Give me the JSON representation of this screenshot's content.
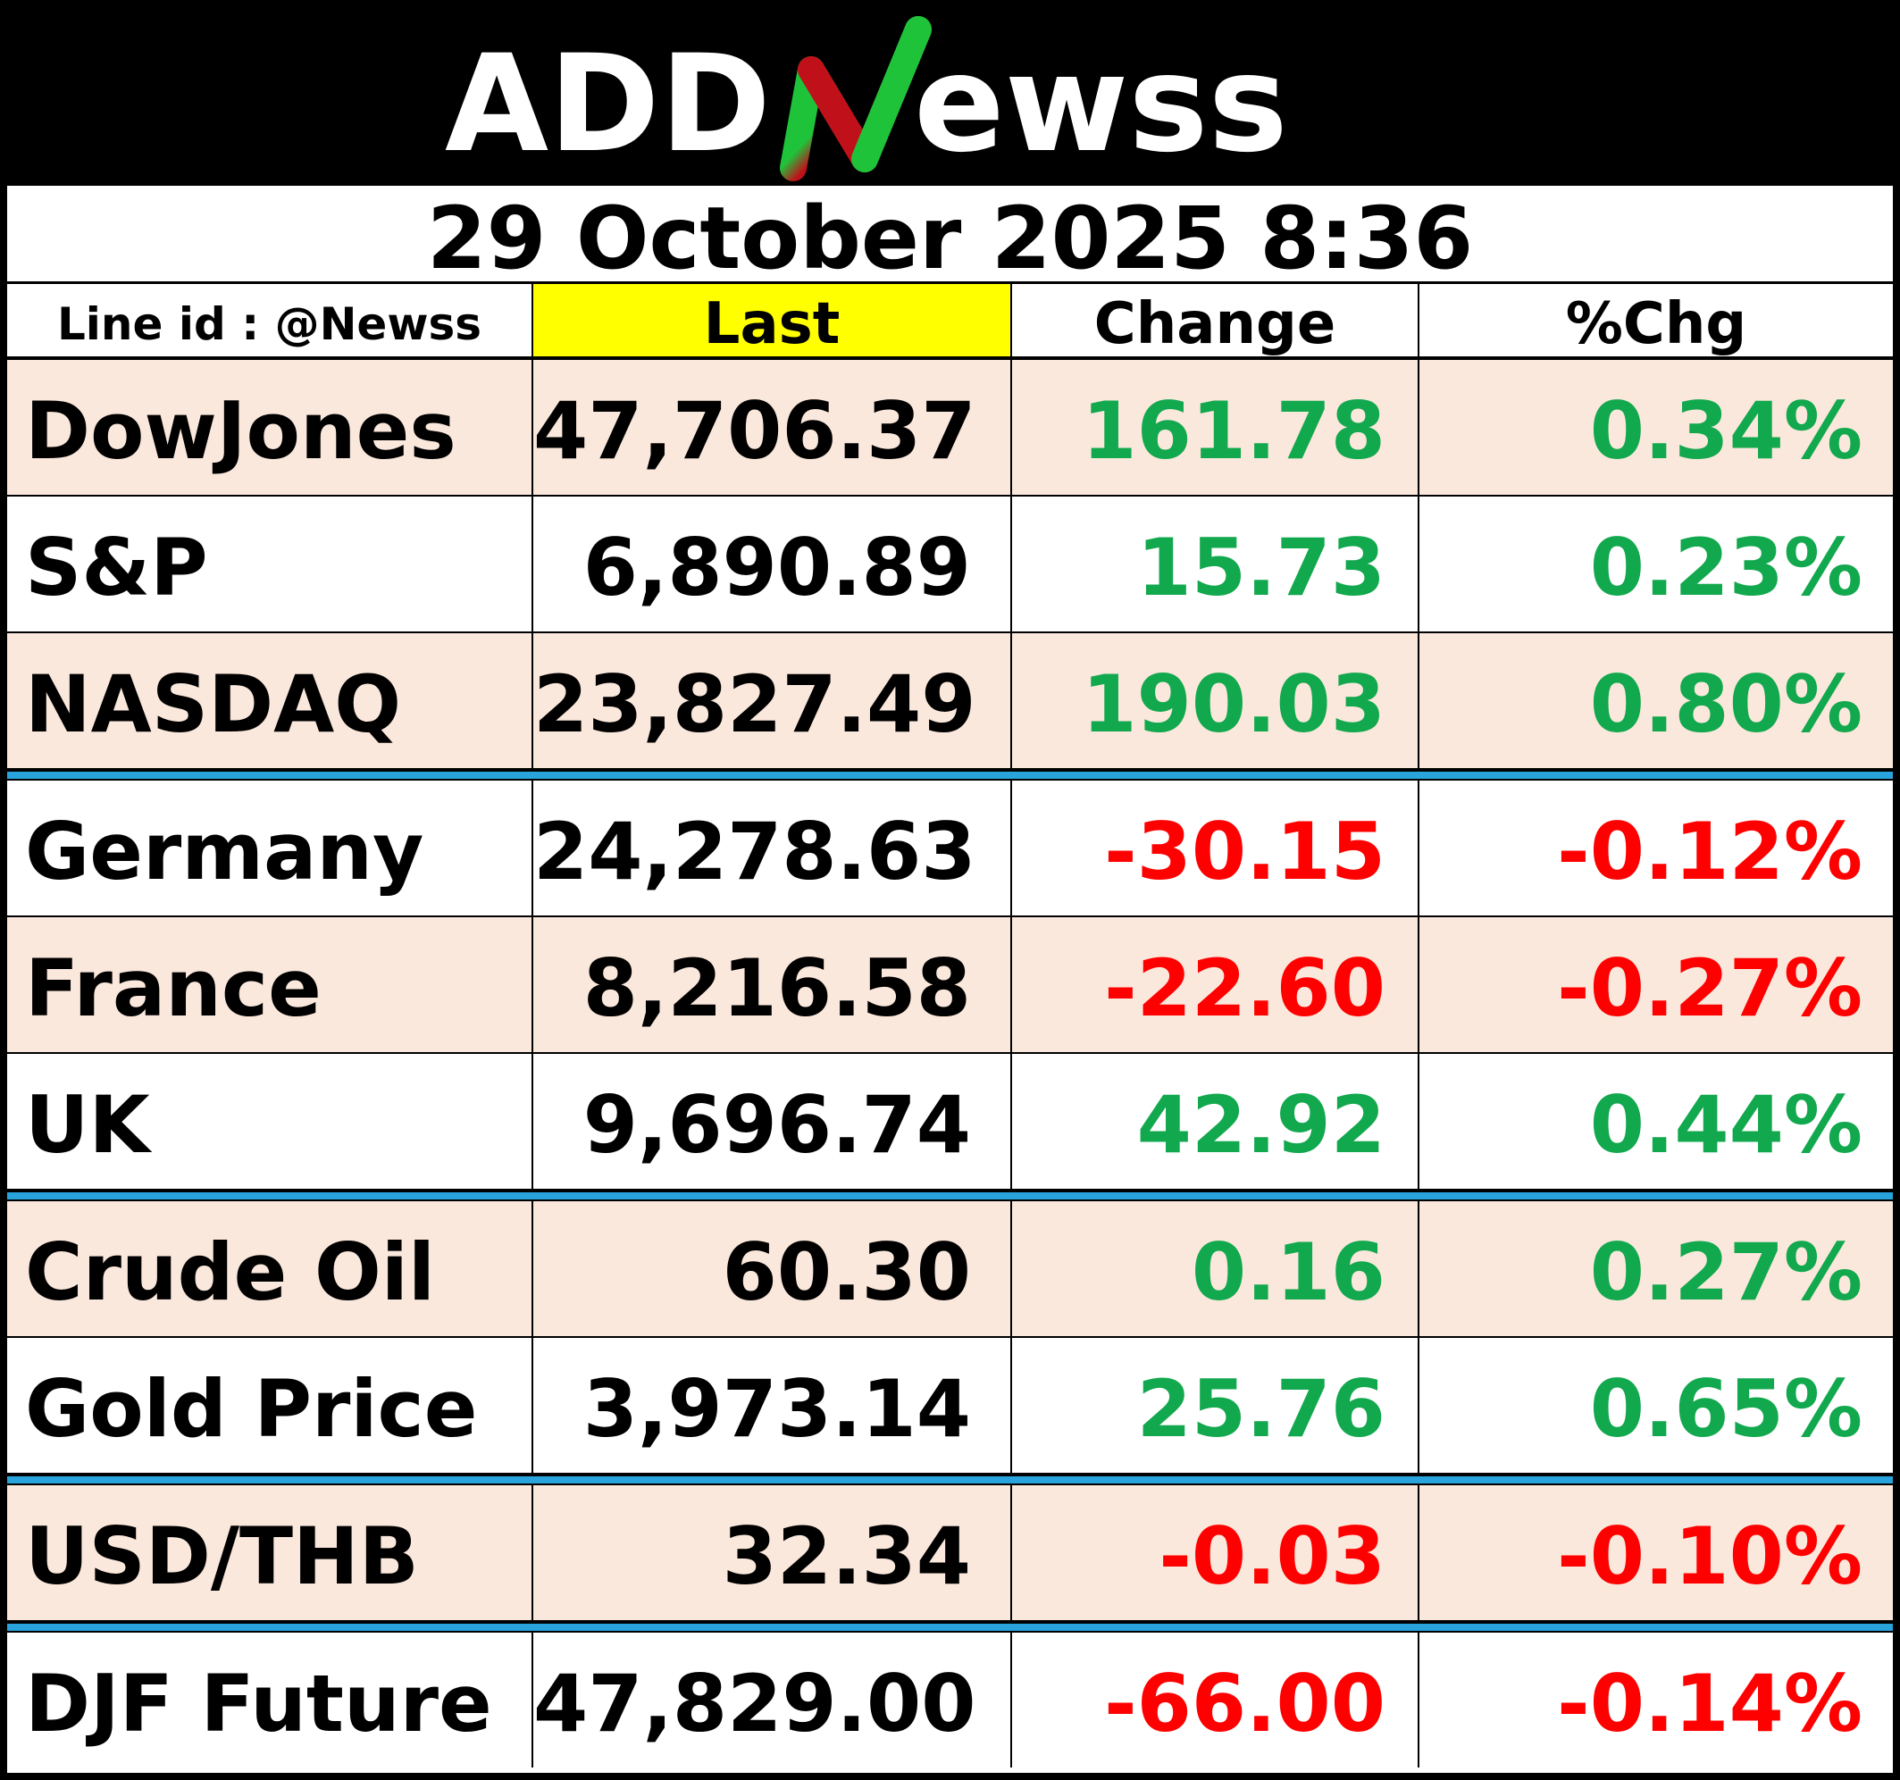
{
  "logo": {
    "text_left": "ADD",
    "text_n": "N",
    "text_right": "ewss",
    "colors": {
      "background": "#000000",
      "text": "#ffffff",
      "n_green": "#1fc33a",
      "n_red": "#c0111a"
    }
  },
  "date": "29 October 2025  8:36",
  "header": {
    "line_id": "Line id : @Newss",
    "last": "Last",
    "change": "Change",
    "pct_change": "%Chg"
  },
  "rows": [
    {
      "name": "DowJones",
      "last": "47,706.37",
      "change": "161.78",
      "pct": "0.34%",
      "direction": "up"
    },
    {
      "name": "S&P",
      "last": "6,890.89",
      "change": "15.73",
      "pct": "0.23%",
      "direction": "up"
    },
    {
      "name": "NASDAQ",
      "last": "23,827.49",
      "change": "190.03",
      "pct": "0.80%",
      "direction": "up"
    },
    {
      "name": "Germany",
      "last": "24,278.63",
      "change": "-30.15",
      "pct": "-0.12%",
      "direction": "down"
    },
    {
      "name": "France",
      "last": "8,216.58",
      "change": "-22.60",
      "pct": "-0.27%",
      "direction": "down"
    },
    {
      "name": "UK",
      "last": "9,696.74",
      "change": "42.92",
      "pct": "0.44%",
      "direction": "up"
    },
    {
      "name": "Crude Oil",
      "last": "60.30",
      "change": "0.16",
      "pct": "0.27%",
      "direction": "up"
    },
    {
      "name": "Gold Price",
      "last": "3,973.14",
      "change": "25.76",
      "pct": "0.65%",
      "direction": "up"
    },
    {
      "name": "USD/THB",
      "last": "32.34",
      "change": "-0.03",
      "pct": "-0.10%",
      "direction": "down"
    },
    {
      "name": "DJF Future",
      "last": "47,829.00",
      "change": "-66.00",
      "pct": "-0.14%",
      "direction": "down"
    }
  ],
  "colors": {
    "positive": "#12a84e",
    "negative": "#ff0000",
    "row_shade": "#fbe8dc",
    "header_highlight": "#ffff00",
    "group_separator": "#29a3dc"
  }
}
